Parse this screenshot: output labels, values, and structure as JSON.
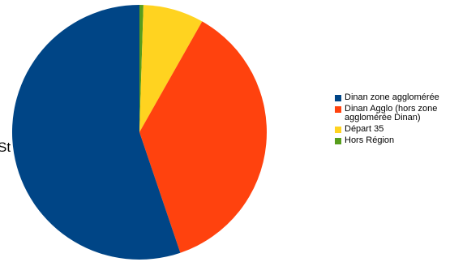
{
  "chart_data": {
    "type": "pie",
    "title": "",
    "start_angle_deg": 0,
    "direction": "clockwise",
    "series": [
      {
        "values": [
          0.5,
          7.7,
          36.6,
          55.2
        ],
        "labels": [
          "Hors Région",
          "Départ 35",
          "Dinan Agglo (hors zone agglomérée Dinan)",
          "Dinan zone agglomérée"
        ],
        "colors": [
          "#579d1c",
          "#ffd320",
          "#ff420e",
          "#004586"
        ]
      }
    ],
    "legend_position": "right",
    "legend": [
      {
        "label": "Dinan zone agglomérée",
        "color": "#004586"
      },
      {
        "label": "Dinan Agglo (hors zone agglomérée Dinan)",
        "color": "#ff420e"
      },
      {
        "label": "Départ 35",
        "color": "#ffd320"
      },
      {
        "label": "Hors Région",
        "color": "#579d1c"
      }
    ],
    "annotations": [
      "St"
    ]
  }
}
